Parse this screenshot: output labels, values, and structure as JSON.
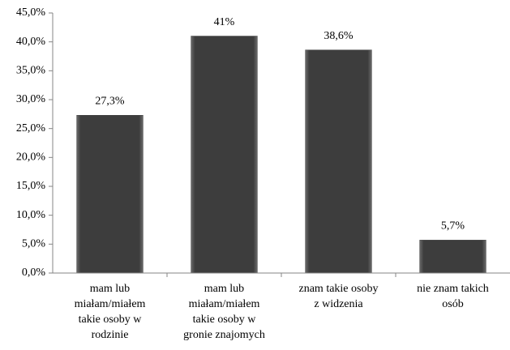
{
  "chart_data": {
    "type": "bar",
    "categories": [
      "mam lub\nmiałam/miałem\ntakie osoby w\nrodzinie",
      "mam lub\nmiałam/miałem\ntakie osoby w\ngronie znajomych",
      "znam takie osoby\nz widzenia",
      "nie znam takich\nosób"
    ],
    "values": [
      27.3,
      41,
      38.6,
      5.7
    ],
    "value_labels": [
      "27,3%",
      "41%",
      "38,6%",
      "5,7%"
    ],
    "color": "#3d3d3d",
    "ylim": [
      0,
      45
    ],
    "yticks": [
      {
        "value": 0,
        "label": "0,0%"
      },
      {
        "value": 5,
        "label": "5,0%"
      },
      {
        "value": 10,
        "label": "10,0%"
      },
      {
        "value": 15,
        "label": "15,0%"
      },
      {
        "value": 20,
        "label": "20,0%"
      },
      {
        "value": 25,
        "label": "25,0%"
      },
      {
        "value": 30,
        "label": "30,0%"
      },
      {
        "value": 35,
        "label": "35,0%"
      },
      {
        "value": 40,
        "label": "40,0%"
      },
      {
        "value": 45,
        "label": "45,0%"
      }
    ],
    "grid": false
  }
}
